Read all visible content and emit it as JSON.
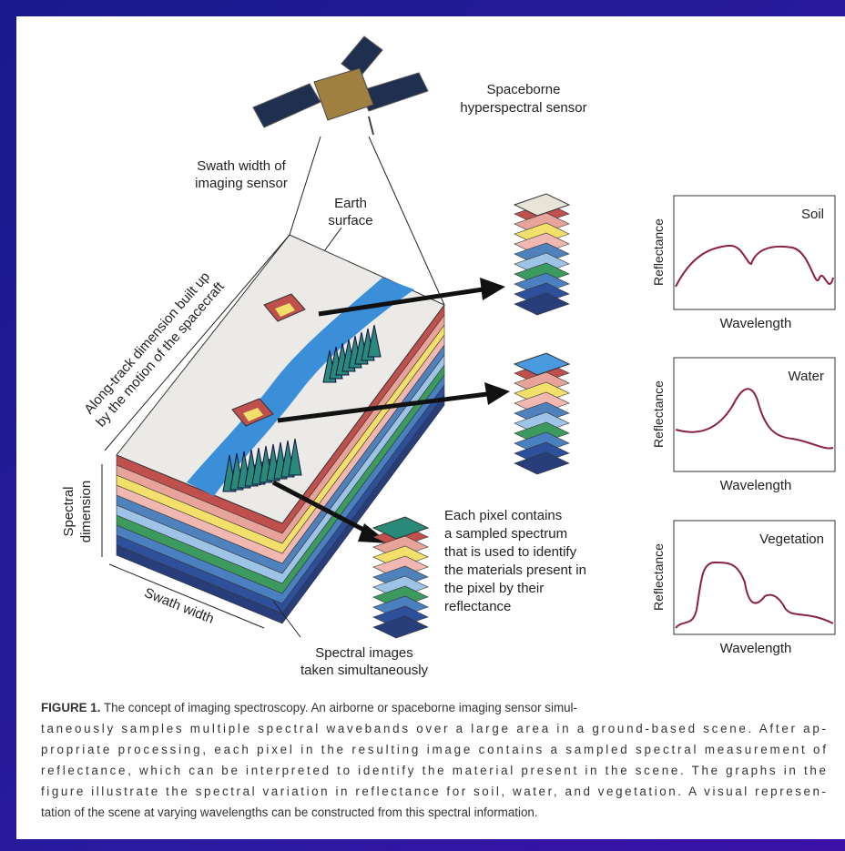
{
  "satellite_label": [
    "Spaceborne",
    "hyperspectral sensor"
  ],
  "swath_label": [
    "Swath width of",
    "imaging sensor"
  ],
  "earth_label": [
    "Earth",
    "surface"
  ],
  "along_track_label": [
    "Along-track dimension built up",
    "by the motion of the spacecraft"
  ],
  "spectral_dimension_label": [
    "Spectral",
    "dimension"
  ],
  "swath_width_label": "Swath width",
  "pixel_note": [
    "Each pixel contains",
    "a sampled spectrum",
    "that is used to identify",
    "the materials present in",
    "the pixel by their",
    "reflectance"
  ],
  "spectral_images_label": [
    "Spectral  images",
    "taken simultaneously"
  ],
  "graphs": [
    {
      "name": "Soil",
      "y_label": "Reflectance",
      "x_label": "Wavelength"
    },
    {
      "name": "Water",
      "y_label": "Reflectance",
      "x_label": "Wavelength"
    },
    {
      "name": "Vegetation",
      "y_label": "Reflectance",
      "x_label": "Wavelength"
    }
  ],
  "caption": {
    "label": "FIGURE 1.",
    "lines": [
      "The concept of imaging spectroscopy. An airborne or spaceborne imaging sensor simul-",
      "taneously samples multiple spectral wavebands over a large area in a ground-based scene. After ap-",
      "propriate processing, each pixel in the resulting image contains a sampled spectral measurement of",
      "reflectance, which can be interpreted to identify the material present in the scene. The graphs in the",
      "figure illustrate the spectral variation in reflectance for soil, water, and vegetation. A visual represen-",
      "tation of the scene at varying wavelengths can be constructed from this spectral information."
    ]
  }
}
